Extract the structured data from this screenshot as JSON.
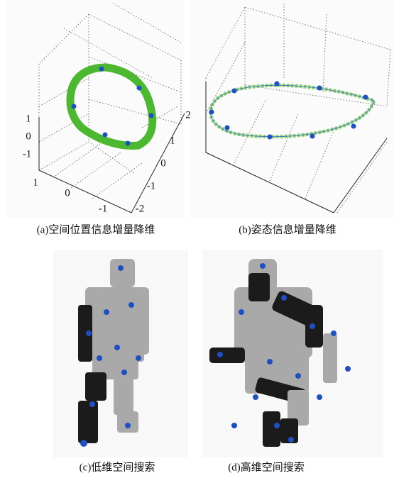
{
  "panels": [
    {
      "caption": "(a)空间位置信息增量降维",
      "z_ticks": [
        "1",
        "0",
        "-1"
      ],
      "x_ticks": [
        "1",
        "0",
        "-1"
      ],
      "y_ticks": [
        "2",
        "1",
        "0",
        "-1",
        "-2"
      ]
    },
    {
      "caption": "(b)姿态信息增量降维"
    },
    {
      "caption": "(c)低维空间搜索"
    },
    {
      "caption": "(d)高维空间搜索"
    }
  ]
}
